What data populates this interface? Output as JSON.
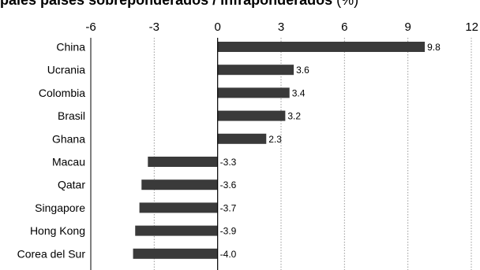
{
  "title": "pales países sobreponderados / infraponderados",
  "title_unit": "(%)",
  "colors": {
    "bar": "#3a3a3a",
    "text": "#000000",
    "grid": "#9a9a9a"
  },
  "chart_data": {
    "type": "bar",
    "orientation": "horizontal",
    "title": "pales países sobreponderados / infraponderados (%)",
    "categories": [
      "China",
      "Ucrania",
      "Colombia",
      "Brasil",
      "Ghana",
      "Macau",
      "Qatar",
      "Singapore",
      "Hong Kong",
      "Corea del Sur"
    ],
    "values": [
      9.8,
      3.6,
      3.4,
      3.2,
      2.3,
      -3.3,
      -3.6,
      -3.7,
      -3.9,
      -4.0
    ],
    "value_labels": [
      "9.8",
      "3.6",
      "3.4",
      "3.2",
      "2.3",
      "-3.3",
      "-3.6",
      "-3.7",
      "-3.9",
      "-4.0"
    ],
    "xlim": [
      -6,
      12
    ],
    "xticks": [
      -6,
      -3,
      0,
      3,
      6,
      9,
      12
    ],
    "xtick_labels": [
      "-6",
      "-3",
      "0",
      "3",
      "6",
      "9",
      "12"
    ],
    "xaxis_position": "top",
    "grid": "vertical dotted"
  }
}
